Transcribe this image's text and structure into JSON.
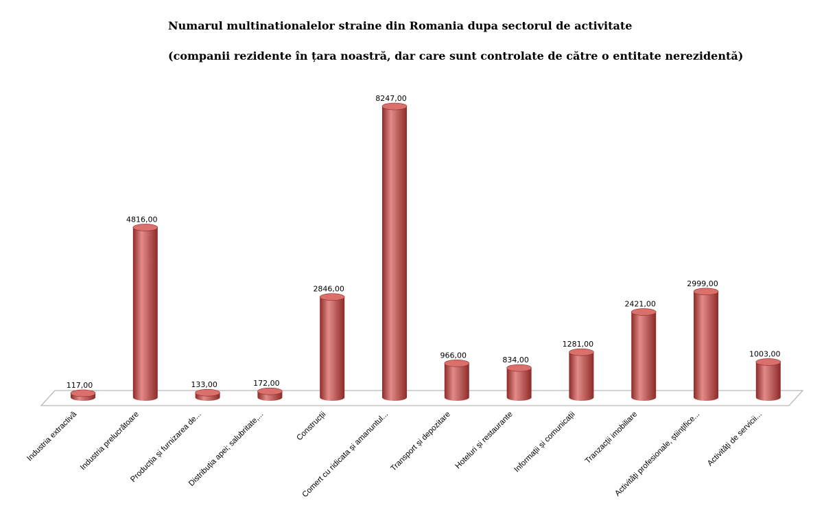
{
  "colors": {
    "bar_body": "#c0504d",
    "bar_dark": "#8c2b28",
    "bar_light": "#e38b88",
    "bar_top": "#d9706c",
    "floor_stroke": "#a6a6a6"
  },
  "chart_data": {
    "type": "bar",
    "title": "Numarul multinationalelor straine din Romania dupa sectorul de activitate",
    "subtitle": "(companii rezidente în țara noastră, dar care sunt controlate de către o entitate nerezidentă)",
    "categories": [
      "Industria extractivă",
      "Industria prelucrătoare",
      "Producția și furnizarea de...",
      "Distribuția apei; salubritate,...",
      "Construcții",
      "Comert cu ridicata și amanuntul...",
      "Transport și depozitare",
      "Hoteluri și restaurante",
      "Informații și comunicații",
      "Tranzacții imobiliare",
      "Activități profesionale, științifice...",
      "Activități de servicii..."
    ],
    "values": [
      117,
      4816,
      133,
      172,
      2846,
      8247,
      966,
      834,
      1281,
      2421,
      2999,
      1003
    ],
    "value_labels": [
      "117,00",
      "4816,00",
      "133,00",
      "172,00",
      "2846,00",
      "8247,00",
      "966,00",
      "834,00",
      "1281,00",
      "2421,00",
      "2999,00",
      "1003,00"
    ],
    "xlabel": "",
    "ylabel": "",
    "ylim": [
      0,
      8247
    ],
    "grid": false,
    "legend": "none"
  }
}
